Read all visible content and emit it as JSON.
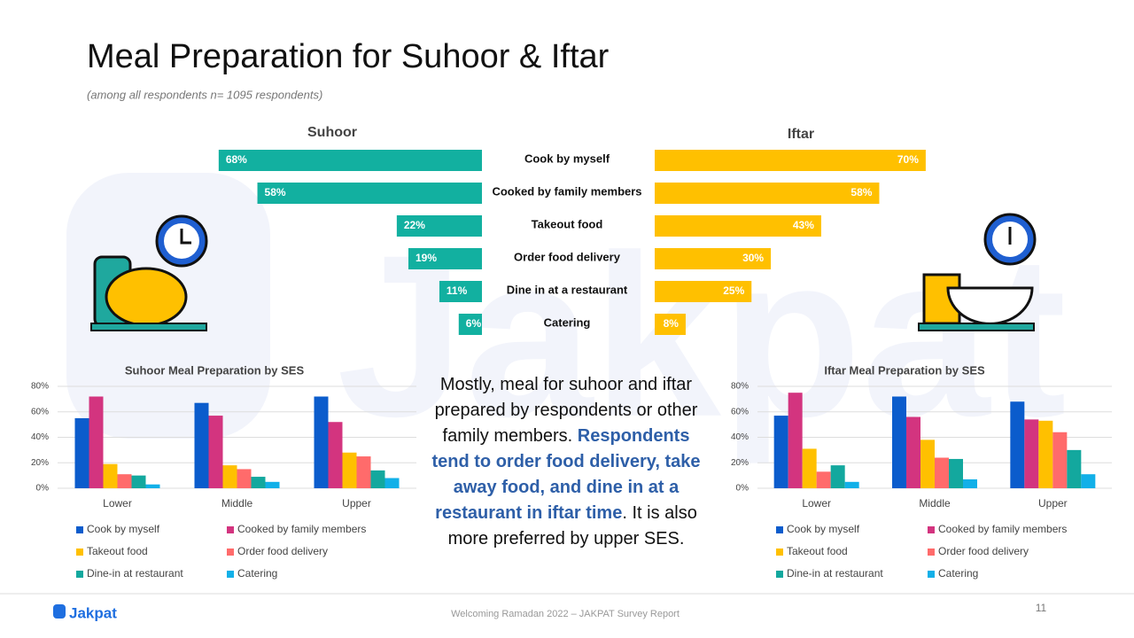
{
  "title": "Meal Preparation for Suhoor & Iftar",
  "subtitle": "(among all respondents n= 1095 respondents)",
  "summary": [
    "Mostly, meal for suhoor and iftar prepared by respondents or other family members. ",
    "Respondents tend to order food delivery, take away food, and dine in at a restaurant in iftar time",
    ". It is also more preferred by upper SES."
  ],
  "footer": "Welcoming Ramadan 2022 – JAKPAT Survey Report",
  "page_number": "11",
  "logo": "Jakpat",
  "chart_data": [
    {
      "type": "butterfly",
      "categories": [
        "Cook by myself",
        "Cooked by family members",
        "Takeout food",
        "Order food delivery",
        "Dine in at a restaurant",
        "Catering"
      ],
      "series": [
        {
          "name": "Suhoor",
          "color": "#12b0a0",
          "values": [
            68,
            58,
            22,
            19,
            11,
            6
          ],
          "value_labels": [
            "68%",
            "58%",
            "22%",
            "19%",
            "11%",
            "6%"
          ]
        },
        {
          "name": "Iftar",
          "color": "#ffc000",
          "values": [
            70,
            58,
            43,
            30,
            25,
            8
          ],
          "value_labels": [
            "70%",
            "58%",
            "43%",
            "30%",
            "25%",
            "8%"
          ]
        }
      ]
    },
    {
      "type": "bar",
      "title": "Suhoor Meal Preparation by SES",
      "categories": [
        "Lower",
        "Middle",
        "Upper"
      ],
      "ylim": [
        0,
        80
      ],
      "yticks": [
        {
          "value": 0,
          "label": "0%"
        },
        {
          "value": 20,
          "label": "20%"
        },
        {
          "value": 40,
          "label": "40%"
        },
        {
          "value": 60,
          "label": "60%"
        },
        {
          "value": 80,
          "label": "80%"
        }
      ],
      "grid": true,
      "series": [
        {
          "name": "Cook by myself",
          "color": "#0b5ccc",
          "values": [
            55,
            67,
            72
          ]
        },
        {
          "name": "Cooked by family members",
          "color": "#d3347f",
          "values": [
            72,
            57,
            52
          ]
        },
        {
          "name": "Takeout food",
          "color": "#ffc000",
          "values": [
            19,
            18,
            28
          ]
        },
        {
          "name": "Order food delivery",
          "color": "#ff6b6b",
          "values": [
            11,
            15,
            25
          ]
        },
        {
          "name": "Dine-in at restaurant",
          "color": "#13a89e",
          "values": [
            10,
            9,
            14
          ]
        },
        {
          "name": "Catering",
          "color": "#12b0e8",
          "values": [
            3,
            5,
            8
          ]
        }
      ]
    },
    {
      "type": "bar",
      "title": "Iftar Meal Preparation by SES",
      "categories": [
        "Lower",
        "Middle",
        "Upper"
      ],
      "ylim": [
        0,
        80
      ],
      "yticks": [
        {
          "value": 0,
          "label": "0%"
        },
        {
          "value": 20,
          "label": "20%"
        },
        {
          "value": 40,
          "label": "40%"
        },
        {
          "value": 60,
          "label": "60%"
        },
        {
          "value": 80,
          "label": "80%"
        }
      ],
      "grid": true,
      "series": [
        {
          "name": "Cook by myself",
          "color": "#0b5ccc",
          "values": [
            57,
            72,
            68
          ]
        },
        {
          "name": "Cooked by family members",
          "color": "#d3347f",
          "values": [
            75,
            56,
            54
          ]
        },
        {
          "name": "Takeout food",
          "color": "#ffc000",
          "values": [
            31,
            38,
            53
          ]
        },
        {
          "name": "Order food delivery",
          "color": "#ff6b6b",
          "values": [
            13,
            24,
            44
          ]
        },
        {
          "name": "Dine-in at restaurant",
          "color": "#13a89e",
          "values": [
            18,
            23,
            30
          ]
        },
        {
          "name": "Catering",
          "color": "#12b0e8",
          "values": [
            5,
            7,
            11
          ]
        }
      ]
    }
  ]
}
